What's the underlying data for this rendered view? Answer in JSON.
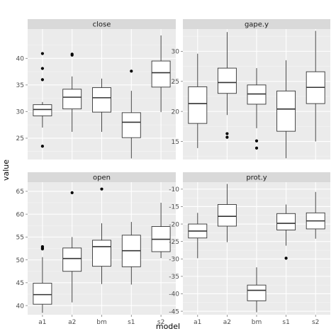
{
  "chart_data": {
    "type": "boxplot",
    "xlabel": "model",
    "ylabel": "value",
    "categories": [
      "a1",
      "a2",
      "bm",
      "s1",
      "s2"
    ],
    "grid": true,
    "colors": {
      "panel_bg": "#ebebeb",
      "strip_bg": "#d9d9d9",
      "grid_major": "#ffffff",
      "grid_minor": "#f5f5f5",
      "box_fill": "#ffffff",
      "line": "#333333",
      "outlier": "#000000"
    },
    "panels": [
      {
        "title": "close",
        "ylim": [
          21,
          45.5
        ],
        "yticks": [
          25,
          30,
          35,
          40
        ],
        "boxes": [
          {
            "category": "a1",
            "whisker_low": 27,
            "q1": 29.2,
            "median": 30.4,
            "q3": 31.3,
            "whisker_high": 31.8,
            "outliers": [
              23.5,
              36,
              38.1,
              40.9
            ]
          },
          {
            "category": "a2",
            "whisker_low": 26.2,
            "q1": 30.5,
            "median": 32.7,
            "q3": 34.2,
            "whisker_high": 36.6,
            "outliers": [
              40.6,
              40.8
            ]
          },
          {
            "category": "bm",
            "whisker_low": 26.2,
            "q1": 29.9,
            "median": 32.6,
            "q3": 34.5,
            "whisker_high": 36.2,
            "outliers": []
          },
          {
            "category": "s1",
            "whisker_low": 21.2,
            "q1": 25.1,
            "median": 28,
            "q3": 29.8,
            "whisker_high": 33.9,
            "outliers": [
              37.6
            ]
          },
          {
            "category": "s2",
            "whisker_low": 29.9,
            "q1": 34.6,
            "median": 37.3,
            "q3": 39.5,
            "whisker_high": 44.3,
            "outliers": []
          }
        ]
      },
      {
        "title": "gape.y",
        "ylim": [
          12,
          33.7
        ],
        "yticks": [
          15,
          20,
          25,
          30
        ],
        "boxes": [
          {
            "category": "a1",
            "whisker_low": 13.9,
            "q1": 18,
            "median": 21.3,
            "q3": 24.1,
            "whisker_high": 29.6,
            "outliers": []
          },
          {
            "category": "a2",
            "whisker_low": 19.4,
            "q1": 23,
            "median": 24.8,
            "q3": 27.2,
            "whisker_high": 33.2,
            "outliers": [
              15.7,
              16.3
            ]
          },
          {
            "category": "bm",
            "whisker_low": 17.2,
            "q1": 21.2,
            "median": 22.9,
            "q3": 24.4,
            "whisker_high": 27.2,
            "outliers": [
              13.9,
              15.1
            ]
          },
          {
            "category": "s1",
            "whisker_low": 12.2,
            "q1": 16.7,
            "median": 20.4,
            "q3": 23.4,
            "whisker_high": 28.5,
            "outliers": []
          },
          {
            "category": "s2",
            "whisker_low": 15,
            "q1": 21.3,
            "median": 24,
            "q3": 26.6,
            "whisker_high": 33.4,
            "outliers": []
          }
        ]
      },
      {
        "title": "open",
        "ylim": [
          38,
          67
        ],
        "yticks": [
          40,
          45,
          50,
          55,
          60,
          65
        ],
        "boxes": [
          {
            "category": "a1",
            "whisker_low": 38.4,
            "q1": 40.3,
            "median": 42.4,
            "q3": 44.9,
            "whisker_high": 50.6,
            "outliers": [
              52.4,
              52.6,
              52.9
            ]
          },
          {
            "category": "a2",
            "whisker_low": 40.7,
            "q1": 47.5,
            "median": 50.3,
            "q3": 52.6,
            "whisker_high": 55,
            "outliers": [
              64.7
            ]
          },
          {
            "category": "bm",
            "whisker_low": 44.7,
            "q1": 48.6,
            "median": 52.9,
            "q3": 54.3,
            "whisker_high": 58,
            "outliers": [
              65.5
            ]
          },
          {
            "category": "s1",
            "whisker_low": 44.6,
            "q1": 48.5,
            "median": 52,
            "q3": 55.4,
            "whisker_high": 58.3,
            "outliers": []
          },
          {
            "category": "s2",
            "whisker_low": 50.4,
            "q1": 51.8,
            "median": 54.5,
            "q3": 57.3,
            "whisker_high": 62.5,
            "outliers": []
          }
        ]
      },
      {
        "title": "prot.y",
        "ylim": [
          -46,
          -8
        ],
        "yticks": [
          -45,
          -40,
          -35,
          -30,
          -25,
          -20,
          -15,
          -10
        ],
        "boxes": [
          {
            "category": "a1",
            "whisker_low": -29.8,
            "q1": -24,
            "median": -22,
            "q3": -20,
            "whisker_high": -16.8,
            "outliers": []
          },
          {
            "category": "a2",
            "whisker_low": -25.2,
            "q1": -20.6,
            "median": -17.8,
            "q3": -14.4,
            "whisker_high": -8.5,
            "outliers": []
          },
          {
            "category": "bm",
            "whisker_low": -45.3,
            "q1": -42,
            "median": -39,
            "q3": -37.5,
            "whisker_high": -32.4,
            "outliers": []
          },
          {
            "category": "s1",
            "whisker_low": -26.2,
            "q1": -21.7,
            "median": -19.8,
            "q3": -17,
            "whisker_high": -14.4,
            "outliers": [
              -29.8
            ]
          },
          {
            "category": "s2",
            "whisker_low": -24.2,
            "q1": -21.4,
            "median": -19.1,
            "q3": -16.8,
            "whisker_high": -10.8,
            "outliers": []
          }
        ]
      }
    ]
  }
}
